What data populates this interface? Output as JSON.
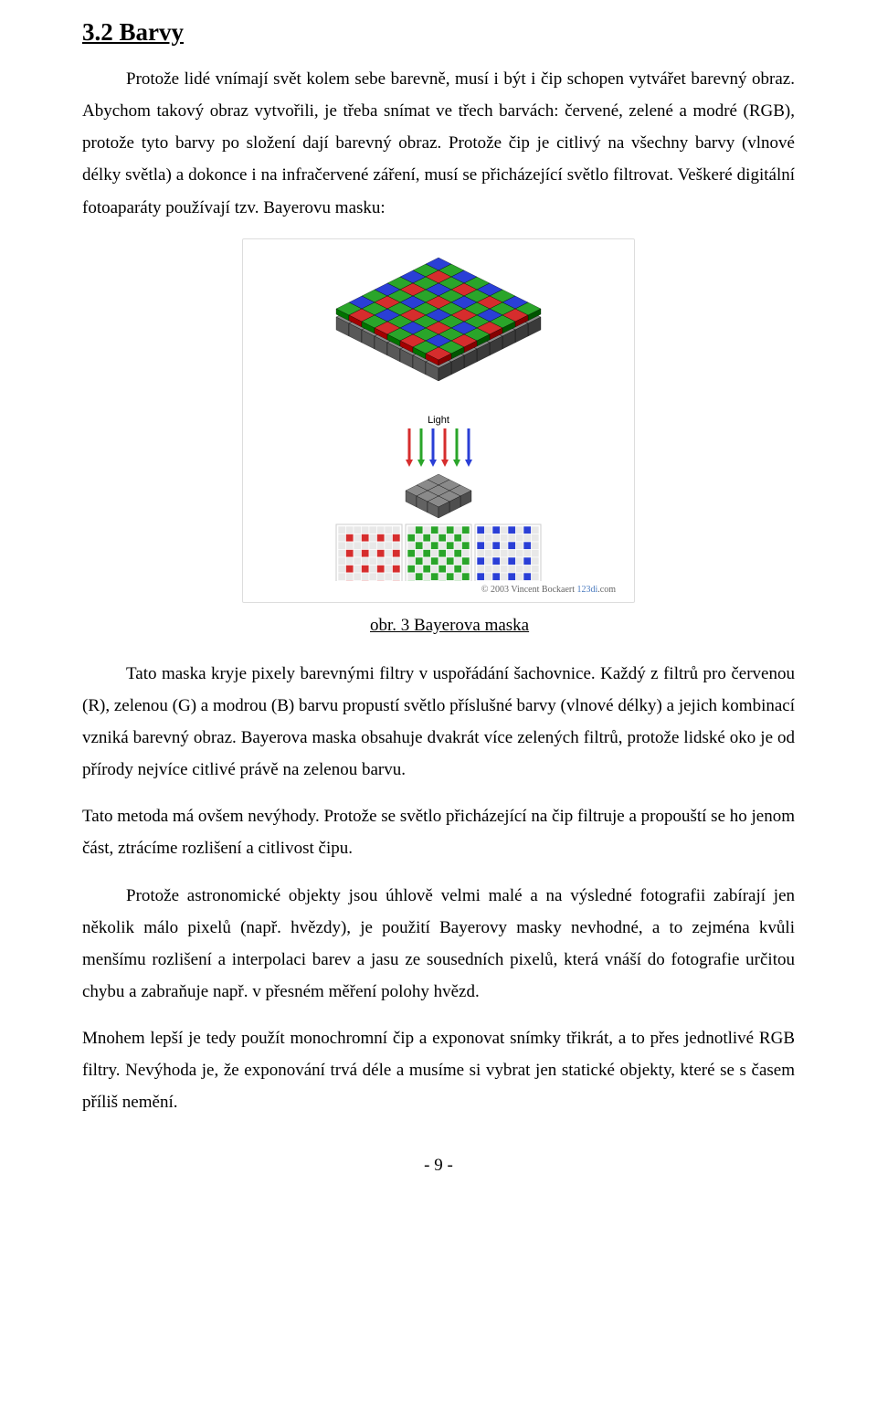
{
  "heading": "3.2  Barvy",
  "paragraphs": {
    "p1": "Protože lidé vnímají svět kolem sebe barevně, musí i být i čip schopen vytvářet barevný obraz. Abychom takový obraz vytvořili, je třeba snímat ve třech barvách: červené, zelené a modré (RGB), protože tyto barvy po složení dají barevný obraz. Protože čip je citlivý na všechny barvy (vlnové délky světla) a dokonce i na infračervené záření, musí se přicházející světlo filtrovat. Veškeré digitální fotoaparáty používají tzv. Bayerovu masku:",
    "p2": "Tato maska kryje pixely barevnými filtry v uspořádání šachovnice. Každý z filtrů pro červenou (R), zelenou (G) a modrou (B) barvu propustí světlo příslušné barvy (vlnové délky) a jejich kombinací vzniká barevný obraz. Bayerova maska obsahuje dvakrát více zelených filtrů, protože lidské oko je od přírody nejvíce citlivé právě na zelenou barvu.",
    "p3": "Tato metoda má ovšem nevýhody. Protože se světlo přicházející na čip filtruje a propouští se ho jenom část, ztrácíme rozlišení a citlivost čipu.",
    "p4": "Protože astronomické objekty jsou úhlově velmi malé a na výsledné fotografii zabírají jen několik málo pixelů (např. hvězdy), je použití Bayerovy masky nevhodné, a to zejména kvůli menšímu rozlišení a interpolaci barev a jasu ze sousedních pixelů, která vnáší do fotografie určitou chybu a zabraňuje např. v přesném měření polohy hvězd.",
    "p5": "Mnohem lepší je tedy použít monochromní čip a exponovat snímky třikrát, a to přes jednotlivé RGB filtry. Nevýhoda je, že exponování trvá déle a musíme si vybrat jen statické objekty, které se s časem příliš nemění."
  },
  "figure": {
    "caption": "obr. 3 Bayerova maska",
    "copyright_prefix": "© 2003 Vincent Bockaert ",
    "copyright_brand": "123di",
    "copyright_suffix": ".com",
    "label_light": "Light",
    "colors": {
      "red": "#d62d2d",
      "green": "#2aa52a",
      "blue": "#2a3fd6",
      "grey_light": "#9a9a9a",
      "grey_dark": "#6f6f6f",
      "sensor_grey": "#8a8a8a",
      "frame": "#dddddd",
      "small_bg": "#e8e8e8"
    },
    "bayer_grid_size": 8,
    "small_grid_size": 8
  },
  "page_number": "- 9 -"
}
